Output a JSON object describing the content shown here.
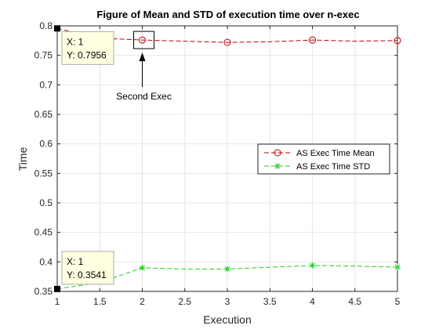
{
  "chart_data": {
    "type": "line",
    "title": "Figure of Mean and STD of execution time over n-exec",
    "xlabel": "Execution",
    "ylabel": "Time",
    "xlim": [
      1,
      5
    ],
    "ylim": [
      0.35,
      0.8
    ],
    "xticks": [
      "1",
      "1.5",
      "2",
      "2.5",
      "3",
      "3.5",
      "4",
      "4.5",
      "5"
    ],
    "yticks": [
      "0.35",
      "0.4",
      "0.45",
      "0.5",
      "0.55",
      "0.6",
      "0.65",
      "0.7",
      "0.75",
      "0.8"
    ],
    "grid": true,
    "legend_position": "right",
    "series": [
      {
        "name": "AS Exec Time Mean",
        "color": "#c00000",
        "marker": "circle",
        "line": "dashed",
        "x": [
          1,
          1.5,
          2,
          2.5,
          3,
          3.5,
          4,
          4.5,
          5
        ],
        "y": [
          0.7956,
          0.779,
          0.776,
          0.774,
          0.772,
          0.773,
          0.776,
          0.774,
          0.775
        ],
        "marker_x": [
          2,
          3,
          4,
          5
        ]
      },
      {
        "name": "AS Exec Time STD",
        "color": "#22cc22",
        "marker": "asterisk",
        "line": "dashed",
        "x": [
          1,
          1.5,
          2,
          2.5,
          3,
          3.5,
          4,
          4.5,
          5
        ],
        "y": [
          0.3541,
          0.365,
          0.39,
          0.388,
          0.388,
          0.391,
          0.394,
          0.393,
          0.391
        ],
        "marker_x": [
          2,
          3,
          4,
          5
        ]
      }
    ],
    "datatips": [
      {
        "x": 1,
        "y": 0.7956,
        "x_text": "X: 1",
        "y_text": "Y: 0.7956"
      },
      {
        "x": 1,
        "y": 0.3541,
        "x_text": "X: 1",
        "y_text": "Y: 0.3541"
      }
    ],
    "annotation": {
      "text": "Second Exec",
      "target_x": 2,
      "target_y": 0.776
    }
  }
}
